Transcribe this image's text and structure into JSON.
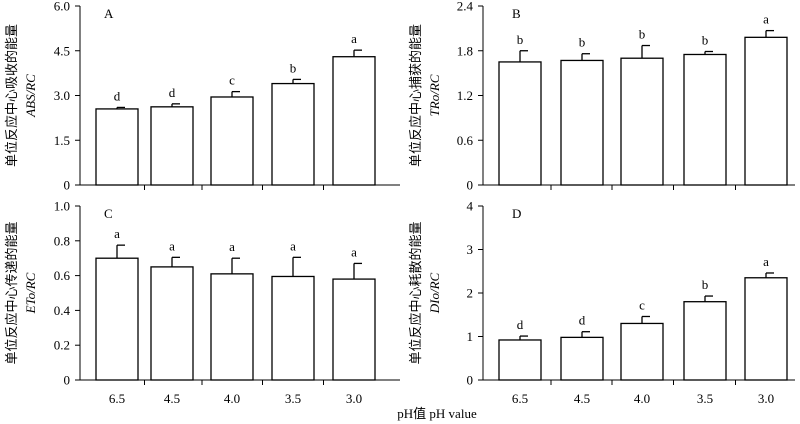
{
  "chart_data": [
    {
      "type": "bar",
      "panel": "A",
      "ylabel_cn": "单位反应中心吸收的能量",
      "ylabel_en": "ABS/RC",
      "categories": [
        "6.5",
        "4.5",
        "4.0",
        "3.5",
        "3.0"
      ],
      "values": [
        2.55,
        2.62,
        2.95,
        3.4,
        4.3
      ],
      "errors": [
        0.05,
        0.1,
        0.18,
        0.14,
        0.22
      ],
      "significance": [
        "d",
        "d",
        "c",
        "b",
        "a"
      ],
      "ylim": [
        0,
        6.0
      ],
      "yticks": [
        "0",
        "1.5",
        "3.0",
        "4.5",
        "6.0"
      ]
    },
    {
      "type": "bar",
      "panel": "B",
      "ylabel_cn": "单位反应中心捕获的能量",
      "ylabel_en": "TRo/RC",
      "categories": [
        "6.5",
        "4.5",
        "4.0",
        "3.5",
        "3.0"
      ],
      "values": [
        1.65,
        1.67,
        1.7,
        1.75,
        1.98
      ],
      "errors": [
        0.15,
        0.09,
        0.17,
        0.04,
        0.09
      ],
      "significance": [
        "b",
        "b",
        "b",
        "b",
        "a"
      ],
      "ylim": [
        0,
        2.4
      ],
      "yticks": [
        "0",
        "0.6",
        "1.2",
        "1.8",
        "2.4"
      ]
    },
    {
      "type": "bar",
      "panel": "C",
      "ylabel_cn": "单位反应中心传递的能量",
      "ylabel_en": "ETo/RC",
      "categories": [
        "6.5",
        "4.5",
        "4.0",
        "3.5",
        "3.0"
      ],
      "values": [
        0.7,
        0.65,
        0.61,
        0.595,
        0.58
      ],
      "errors": [
        0.075,
        0.055,
        0.09,
        0.11,
        0.09
      ],
      "significance": [
        "a",
        "a",
        "a",
        "a",
        "a"
      ],
      "ylim": [
        0,
        1.0
      ],
      "yticks": [
        "0",
        "0.2",
        "0.4",
        "0.6",
        "0.8",
        "1.0"
      ]
    },
    {
      "type": "bar",
      "panel": "D",
      "ylabel_cn": "单位反应中心耗散的能量",
      "ylabel_en": "DIo/RC",
      "categories": [
        "6.5",
        "4.5",
        "4.0",
        "3.5",
        "3.0"
      ],
      "values": [
        0.92,
        0.98,
        1.3,
        1.8,
        2.35
      ],
      "errors": [
        0.09,
        0.13,
        0.16,
        0.13,
        0.11
      ],
      "significance": [
        "d",
        "d",
        "c",
        "b",
        "a"
      ],
      "ylim": [
        0,
        4
      ],
      "yticks": [
        "0",
        "1",
        "2",
        "3",
        "4"
      ]
    }
  ],
  "xlabel": "pH值 pH value",
  "colors": {
    "bar_fill": "#ffffff",
    "stroke": "#000000"
  }
}
